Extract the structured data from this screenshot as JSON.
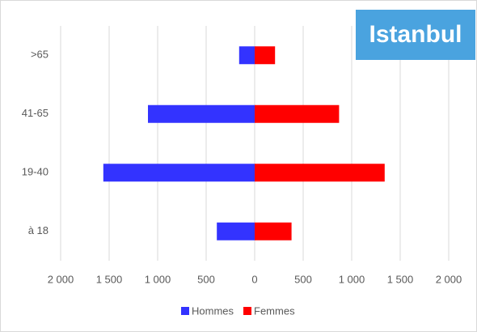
{
  "chart_data": {
    "type": "bar",
    "orientation": "horizontal",
    "stacked": true,
    "title": "Istanbul",
    "categories": [
      ">65",
      "41-65",
      "19-40",
      "à 18"
    ],
    "series": [
      {
        "name": "Hommes",
        "color": "#3333ff",
        "values": [
          -160,
          -1100,
          -1560,
          -390
        ]
      },
      {
        "name": "Femmes",
        "color": "#ff0000",
        "values": [
          210,
          870,
          1340,
          380
        ]
      }
    ],
    "xlim": [
      -2000,
      2000
    ],
    "xticks": [
      {
        "value": -2000,
        "label": "2 000"
      },
      {
        "value": -1500,
        "label": "1 500"
      },
      {
        "value": -1000,
        "label": "1 000"
      },
      {
        "value": -500,
        "label": "500"
      },
      0,
      500,
      {
        "value": 1000,
        "label": "1 000"
      },
      {
        "value": 1500,
        "label": "1 500"
      },
      {
        "value": 2000,
        "label": "2 000"
      }
    ],
    "grid": true,
    "legend": "bottom"
  }
}
